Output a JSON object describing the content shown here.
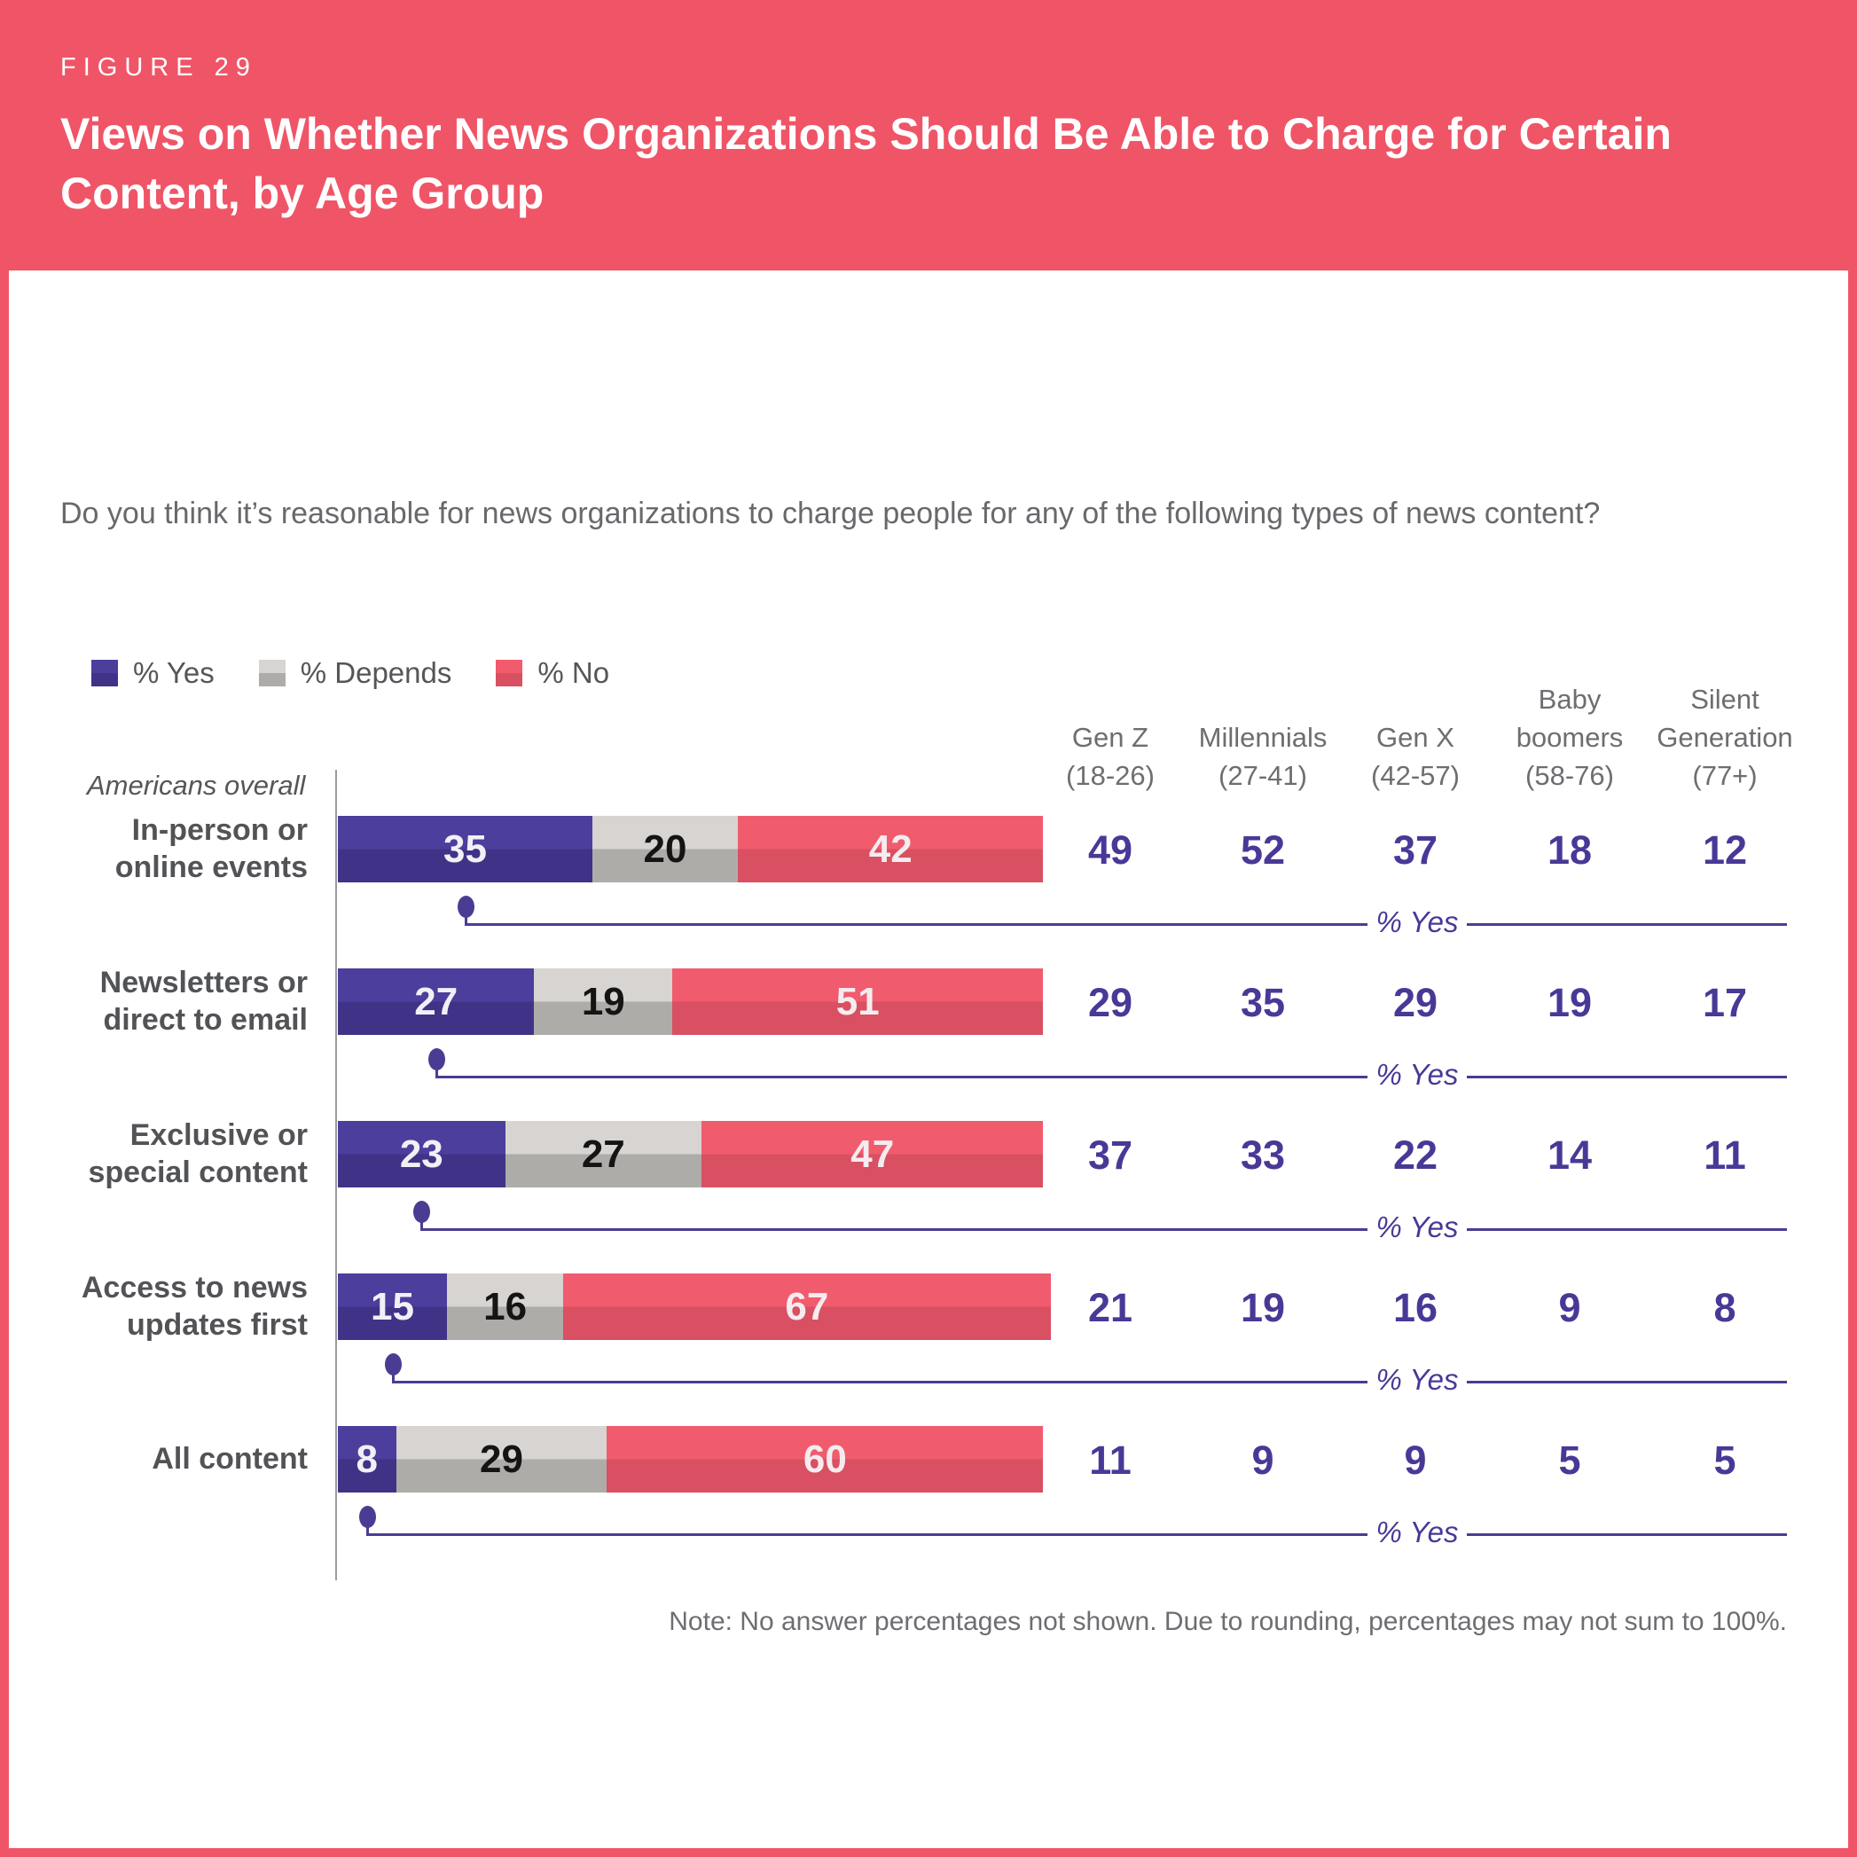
{
  "figure_label": "FIGURE 29",
  "title": "Views on Whether News Organizations Should Be Able to Charge for Certain Content, by Age Group",
  "question": "Do you think it’s reasonable for news organizations to charge people for any of the following types of news content?",
  "legend": {
    "items": [
      {
        "label": "% Yes"
      },
      {
        "label": "% Depends"
      },
      {
        "label": "% No"
      }
    ]
  },
  "overall_label": "Americans overall",
  "yes_line_label": "% Yes",
  "note": "Note: No answer percentages not shown. Due to rounding, percentages may not sum to 100%.",
  "age_groups": [
    {
      "top": "",
      "name": "Gen Z",
      "range": "(18-26)"
    },
    {
      "top": "",
      "name": "Millennials",
      "range": "(27-41)"
    },
    {
      "top": "",
      "name": "Gen X",
      "range": "(42-57)"
    },
    {
      "top": "Baby",
      "name": "boomers",
      "range": "(58-76)"
    },
    {
      "top": "Silent",
      "name": "Generation",
      "range": "(77+)"
    }
  ],
  "colors": {
    "banner_red": "#EF5567",
    "axis_gray": "#9B9BA0",
    "text_gray": "#6D6E71",
    "label_dark_gray": "#525356",
    "value_purple": "#4A3897",
    "connector_purple": "#4B3C93",
    "segments": [
      {
        "key": "yes",
        "label": "% Yes",
        "top": "#4C3E9C",
        "bottom": "#403387",
        "text": "#F2F0F5"
      },
      {
        "key": "depends",
        "label": "% Depends",
        "top": "#D7D4D1",
        "bottom": "#AEACA9",
        "text": "#141414"
      },
      {
        "key": "no",
        "label": "% No",
        "top": "#F15B6E",
        "bottom": "#D85062",
        "text": "#F5ECEF"
      }
    ]
  },
  "chart_data": {
    "type": "bar",
    "orientation": "horizontal",
    "stacked": true,
    "x_axis": {
      "unit": "percent",
      "range": [
        0,
        100
      ],
      "grid": false
    },
    "series_labels": [
      "% Yes",
      "% Depends",
      "% No"
    ],
    "age_group_columns": [
      "Gen Z (18-26)",
      "Millennials (27-41)",
      "Gen X (42-57)",
      "Baby boomers (58-76)",
      "Silent Generation (77+)"
    ],
    "rows": [
      {
        "category": "In-person or online events",
        "label_lines": [
          "In-person or",
          "online events"
        ],
        "yes": 35,
        "depends": 20,
        "no": 42,
        "age_yes": [
          49,
          52,
          37,
          18,
          12
        ]
      },
      {
        "category": "Newsletters or direct to email",
        "label_lines": [
          "Newsletters or",
          "direct to email"
        ],
        "yes": 27,
        "depends": 19,
        "no": 51,
        "age_yes": [
          29,
          35,
          29,
          19,
          17
        ]
      },
      {
        "category": "Exclusive or special content",
        "label_lines": [
          "Exclusive or",
          "special content"
        ],
        "yes": 23,
        "depends": 27,
        "no": 47,
        "age_yes": [
          37,
          33,
          22,
          14,
          11
        ]
      },
      {
        "category": "Access to news updates first",
        "label_lines": [
          "Access to news",
          "updates first"
        ],
        "yes": 15,
        "depends": 16,
        "no": 67,
        "age_yes": [
          21,
          19,
          16,
          9,
          8
        ]
      },
      {
        "category": "All content",
        "label_lines": [
          "All content"
        ],
        "yes": 8,
        "depends": 29,
        "no": 60,
        "age_yes": [
          11,
          9,
          9,
          5,
          5
        ]
      }
    ]
  }
}
